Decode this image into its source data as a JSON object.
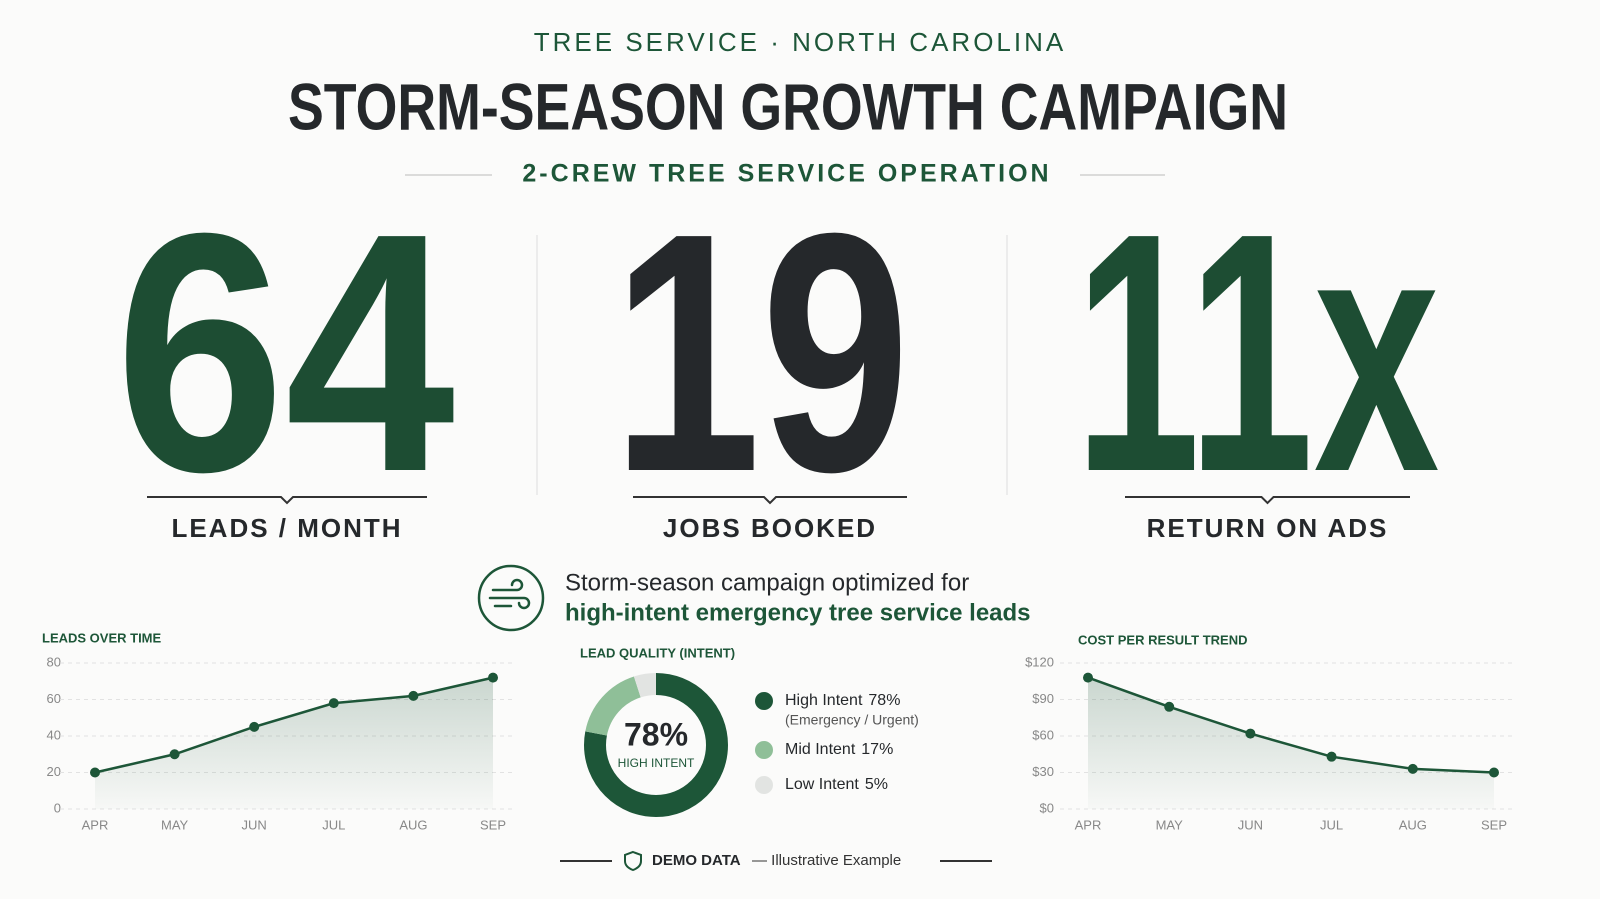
{
  "header": {
    "eyebrow": "TREE SERVICE · NORTH CAROLINA",
    "title": "STORM-SEASON GROWTH CAMPAIGN",
    "subtitle": "2-CREW TREE SERVICE OPERATION"
  },
  "stats": [
    {
      "value": 64,
      "label": "LEADS / MONTH",
      "color": "#1d4d33"
    },
    {
      "value": 19,
      "label": "JOBS BOOKED",
      "color": "#25282b"
    },
    {
      "value": "11x",
      "label": "RETURN ON ADS",
      "color": "#1d4d33"
    }
  ],
  "callout": {
    "line1": "Storm-season campaign optimized for",
    "line2": "high-intent emergency tree service leads"
  },
  "chart_data": [
    {
      "type": "line",
      "title": "LEADS OVER TIME",
      "categories": [
        "APR",
        "MAY",
        "JUN",
        "JUL",
        "AUG",
        "SEP"
      ],
      "values": [
        20,
        30,
        45,
        58,
        62,
        72
      ],
      "color": "#1d5638",
      "ylim": [
        0,
        80
      ],
      "yticks": [
        0,
        20,
        40,
        60,
        80
      ],
      "grid": true
    },
    {
      "type": "donut",
      "title": "LEAD QUALITY (INTENT)",
      "center_caption": "HIGH INTENT",
      "categories": [
        "High Intent",
        "Mid Intent",
        "Low Intent"
      ],
      "values": [
        78,
        17,
        5
      ],
      "value_labels": [
        "78%",
        "17%",
        "5%"
      ],
      "notes": [
        "(Emergency / Urgent)",
        null,
        null
      ],
      "colors": [
        "#1d5638",
        "#8fbf98",
        "#e2e4e2"
      ]
    },
    {
      "type": "line",
      "title": "COST PER RESULT TREND",
      "categories": [
        "APR",
        "MAY",
        "JUN",
        "JUL",
        "AUG",
        "SEP"
      ],
      "values": [
        108,
        84,
        62,
        43,
        33,
        30
      ],
      "color": "#1d5638",
      "ylim": [
        0,
        120
      ],
      "yticks": [
        {
          "value": 0,
          "label": "$0"
        },
        {
          "value": 30,
          "label": "$30"
        },
        {
          "value": 60,
          "label": "$60"
        },
        {
          "value": 90,
          "label": "$90"
        },
        {
          "value": 120,
          "label": "$120"
        }
      ],
      "grid": true
    }
  ],
  "footer": {
    "badge": "DEMO DATA",
    "text": "— Illustrative Example"
  }
}
